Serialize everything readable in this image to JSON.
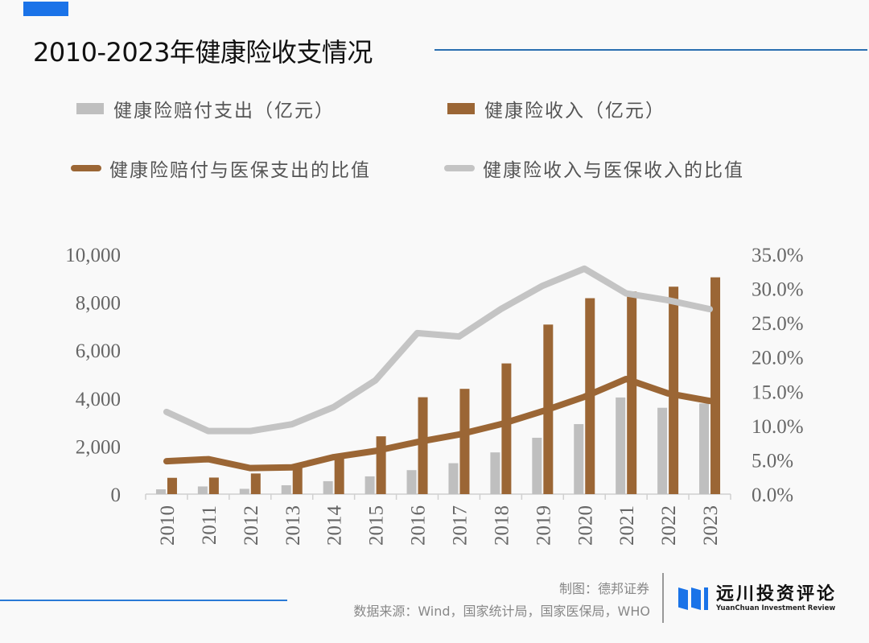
{
  "header": {
    "title": "2010-2023年健康险收支情况"
  },
  "legend": {
    "items": [
      {
        "label": "健康险赔付支出（亿元）",
        "kind": "bar",
        "color": "#bfbfbf"
      },
      {
        "label": "健康险收入（亿元）",
        "kind": "bar",
        "color": "#9b6635"
      },
      {
        "label": "健康险赔付与医保支出的比值",
        "kind": "line",
        "color": "#9b6635"
      },
      {
        "label": "健康险收入与医保收入的比值",
        "kind": "line",
        "color": "#c4c4c4"
      }
    ]
  },
  "chart_data": {
    "type": "bar",
    "title": "2010-2023年健康险收支情况",
    "xlabel": "",
    "ylabel": "",
    "y2label": "",
    "categories": [
      "2010",
      "2011",
      "2012",
      "2013",
      "2014",
      "2015",
      "2016",
      "2017",
      "2018",
      "2019",
      "2020",
      "2021",
      "2022",
      "2023"
    ],
    "ylim": [
      0,
      10000
    ],
    "y_ticks": [
      "0",
      "2,000",
      "4,000",
      "6,000",
      "8,000",
      "10,000"
    ],
    "y2lim": [
      0,
      35
    ],
    "y2_ticks": [
      "0.0%",
      "5.0%",
      "10.0%",
      "15.0%",
      "20.0%",
      "25.0%",
      "30.0%",
      "35.0%"
    ],
    "grid": false,
    "legend_position": "top",
    "series": [
      {
        "name": "健康险赔付支出（亿元）",
        "type": "bar",
        "axis": "left",
        "color": "#bfbfbf",
        "values": [
          200,
          320,
          220,
          370,
          540,
          740,
          1000,
          1290,
          1740,
          2350,
          2920,
          4030,
          3600,
          3780
        ]
      },
      {
        "name": "健康险收入（亿元）",
        "type": "bar",
        "axis": "left",
        "color": "#9b6635",
        "values": [
          680,
          690,
          860,
          1120,
          1590,
          2410,
          4040,
          4390,
          5450,
          7070,
          8170,
          8450,
          8650,
          9040
        ]
      },
      {
        "name": "健康险赔付与医保支出的比值",
        "type": "line",
        "axis": "right",
        "unit": "%",
        "color": "#9b6635",
        "values": [
          4.8,
          5.1,
          3.8,
          3.9,
          5.4,
          6.3,
          7.6,
          8.7,
          10.2,
          12.1,
          14.2,
          16.8,
          14.7,
          13.6
        ]
      },
      {
        "name": "健康险收入与医保收入的比值",
        "type": "line",
        "axis": "right",
        "unit": "%",
        "color": "#c4c4c4",
        "values": [
          12.0,
          9.2,
          9.2,
          10.2,
          12.7,
          16.6,
          23.5,
          23.0,
          27.0,
          30.4,
          32.9,
          29.3,
          28.3,
          27.0
        ]
      }
    ]
  },
  "footer": {
    "credit": "制图：德邦证券",
    "source": "数据来源：Wind，国家统计局，国家医保局，WHO",
    "logo_cn": "远川投资评论",
    "logo_en": "YuanChuan Investment Review"
  }
}
